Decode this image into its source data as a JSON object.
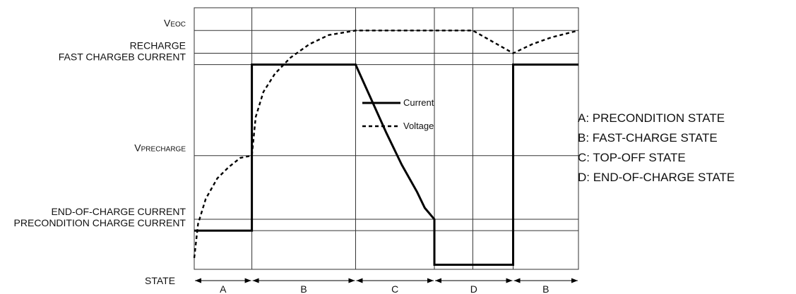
{
  "chart_data": {
    "type": "line",
    "title": "",
    "xlabel": "",
    "ylabel": "",
    "y_levels": [
      {
        "key": "veoc",
        "main": "V",
        "sub": "EOC",
        "value": 100
      },
      {
        "key": "recharge",
        "main": "RECHARGE",
        "sub": "",
        "value": 90
      },
      {
        "key": "fast",
        "main": "FAST CHARGEB CURRENT",
        "sub": "",
        "value": 85
      },
      {
        "key": "vpre",
        "main": "V",
        "sub": "PRECHARGE",
        "value": 45
      },
      {
        "key": "eoc_current",
        "main": "END-OF-CHARGE CURRENT",
        "sub": "",
        "value": 17
      },
      {
        "key": "pre_current",
        "main": "PRECONDITION CHARGE CURRENT",
        "sub": "",
        "value": 12
      }
    ],
    "ylim": [
      -5,
      110
    ],
    "xlim": [
      0,
      10
    ],
    "x_phase_boundaries": [
      0,
      1.5,
      4.2,
      6.25,
      8.3,
      10
    ],
    "x_grid_lines": [
      1.5,
      4.2,
      6.25,
      7.25,
      8.3
    ],
    "series": [
      {
        "name": "Current",
        "style": "solid",
        "points": [
          [
            0,
            12
          ],
          [
            1.5,
            12
          ],
          [
            1.5,
            85
          ],
          [
            4.2,
            85
          ],
          [
            4.6,
            70
          ],
          [
            5.0,
            55
          ],
          [
            5.4,
            41
          ],
          [
            5.8,
            29
          ],
          [
            6.0,
            22
          ],
          [
            6.25,
            17
          ],
          [
            6.25,
            -3
          ],
          [
            8.3,
            -3
          ],
          [
            8.3,
            85
          ],
          [
            10,
            85
          ]
        ]
      },
      {
        "name": "Voltage",
        "style": "dashed",
        "points": [
          [
            0,
            0
          ],
          [
            0.1,
            15
          ],
          [
            0.3,
            26
          ],
          [
            0.6,
            35
          ],
          [
            0.9,
            40
          ],
          [
            1.2,
            44
          ],
          [
            1.5,
            45
          ],
          [
            1.6,
            62
          ],
          [
            1.8,
            73
          ],
          [
            2.1,
            81
          ],
          [
            2.5,
            88
          ],
          [
            3.0,
            94
          ],
          [
            3.5,
            98
          ],
          [
            4.2,
            100
          ],
          [
            6.25,
            100
          ],
          [
            7.25,
            100
          ],
          [
            8.3,
            90
          ],
          [
            8.8,
            94
          ],
          [
            9.3,
            97
          ],
          [
            10,
            100
          ]
        ]
      }
    ],
    "legend": {
      "position": "center",
      "entries": [
        "Current",
        "Voltage"
      ]
    },
    "state_axis": {
      "label": "STATE",
      "segments": [
        {
          "label": "A",
          "from": 0,
          "to": 1.5
        },
        {
          "label": "B",
          "from": 1.5,
          "to": 4.2
        },
        {
          "label": "C",
          "from": 4.2,
          "to": 6.25
        },
        {
          "label": "D",
          "from": 6.25,
          "to": 8.3
        },
        {
          "label": "B",
          "from": 8.3,
          "to": 10
        }
      ]
    },
    "grid": true
  },
  "state_key": [
    "A: PRECONDITION STATE",
    "B: FAST-CHARGE STATE",
    "C: TOP-OFF STATE",
    "D: END-OF-CHARGE STATE"
  ]
}
